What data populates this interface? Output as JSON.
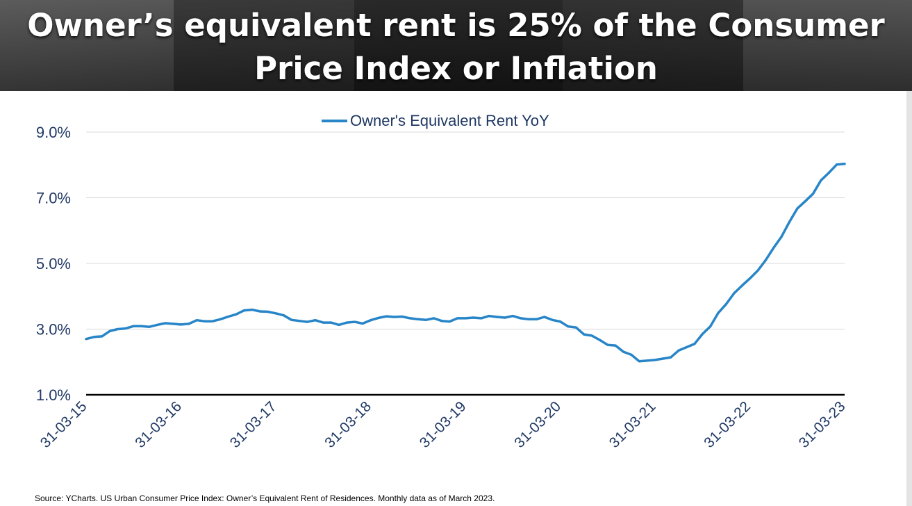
{
  "header": {
    "title": "Owner’s equivalent rent is 25% of the Consumer Price Index or Inflation"
  },
  "footer": {
    "source": "Source: YCharts. US Urban Consumer Price Index: Owner’s Equivalent Rent of Residences. Monthly data as of March 2023."
  },
  "colors": {
    "series": "#2785c8",
    "axis_text": "#1f3864",
    "grid": "#d9d9d9",
    "baseline": "#000000"
  },
  "chart_data": {
    "type": "line",
    "legend_position": "top-center",
    "grid": true,
    "ylim": [
      1.0,
      9.0
    ],
    "y_ticks": [
      "9.0%",
      "7.0%",
      "5.0%",
      "3.0%",
      "1.0%"
    ],
    "x_ticks": [
      "31-03-15",
      "31-03-16",
      "31-03-17",
      "31-03-18",
      "31-03-19",
      "31-03-20",
      "31-03-21",
      "31-03-22",
      "31-03-23"
    ],
    "series": [
      {
        "name": "Owner's Equivalent Rent YoY",
        "start": "2015-03",
        "frequency": "monthly",
        "values": [
          2.7,
          2.76,
          2.78,
          2.94,
          3.0,
          3.02,
          3.09,
          3.09,
          3.07,
          3.13,
          3.18,
          3.16,
          3.14,
          3.16,
          3.27,
          3.24,
          3.24,
          3.3,
          3.38,
          3.45,
          3.57,
          3.59,
          3.54,
          3.53,
          3.48,
          3.42,
          3.28,
          3.25,
          3.22,
          3.27,
          3.2,
          3.2,
          3.13,
          3.2,
          3.22,
          3.17,
          3.27,
          3.34,
          3.39,
          3.37,
          3.38,
          3.33,
          3.3,
          3.28,
          3.33,
          3.25,
          3.23,
          3.33,
          3.33,
          3.35,
          3.33,
          3.4,
          3.37,
          3.35,
          3.4,
          3.33,
          3.3,
          3.3,
          3.37,
          3.28,
          3.23,
          3.08,
          3.05,
          2.84,
          2.8,
          2.67,
          2.52,
          2.5,
          2.31,
          2.22,
          2.02,
          2.04,
          2.06,
          2.1,
          2.14,
          2.35,
          2.45,
          2.55,
          2.85,
          3.08,
          3.49,
          3.76,
          4.09,
          4.32,
          4.54,
          4.78,
          5.1,
          5.47,
          5.81,
          6.26,
          6.67,
          6.89,
          7.12,
          7.53,
          7.76,
          8.01,
          8.03
        ]
      }
    ]
  }
}
